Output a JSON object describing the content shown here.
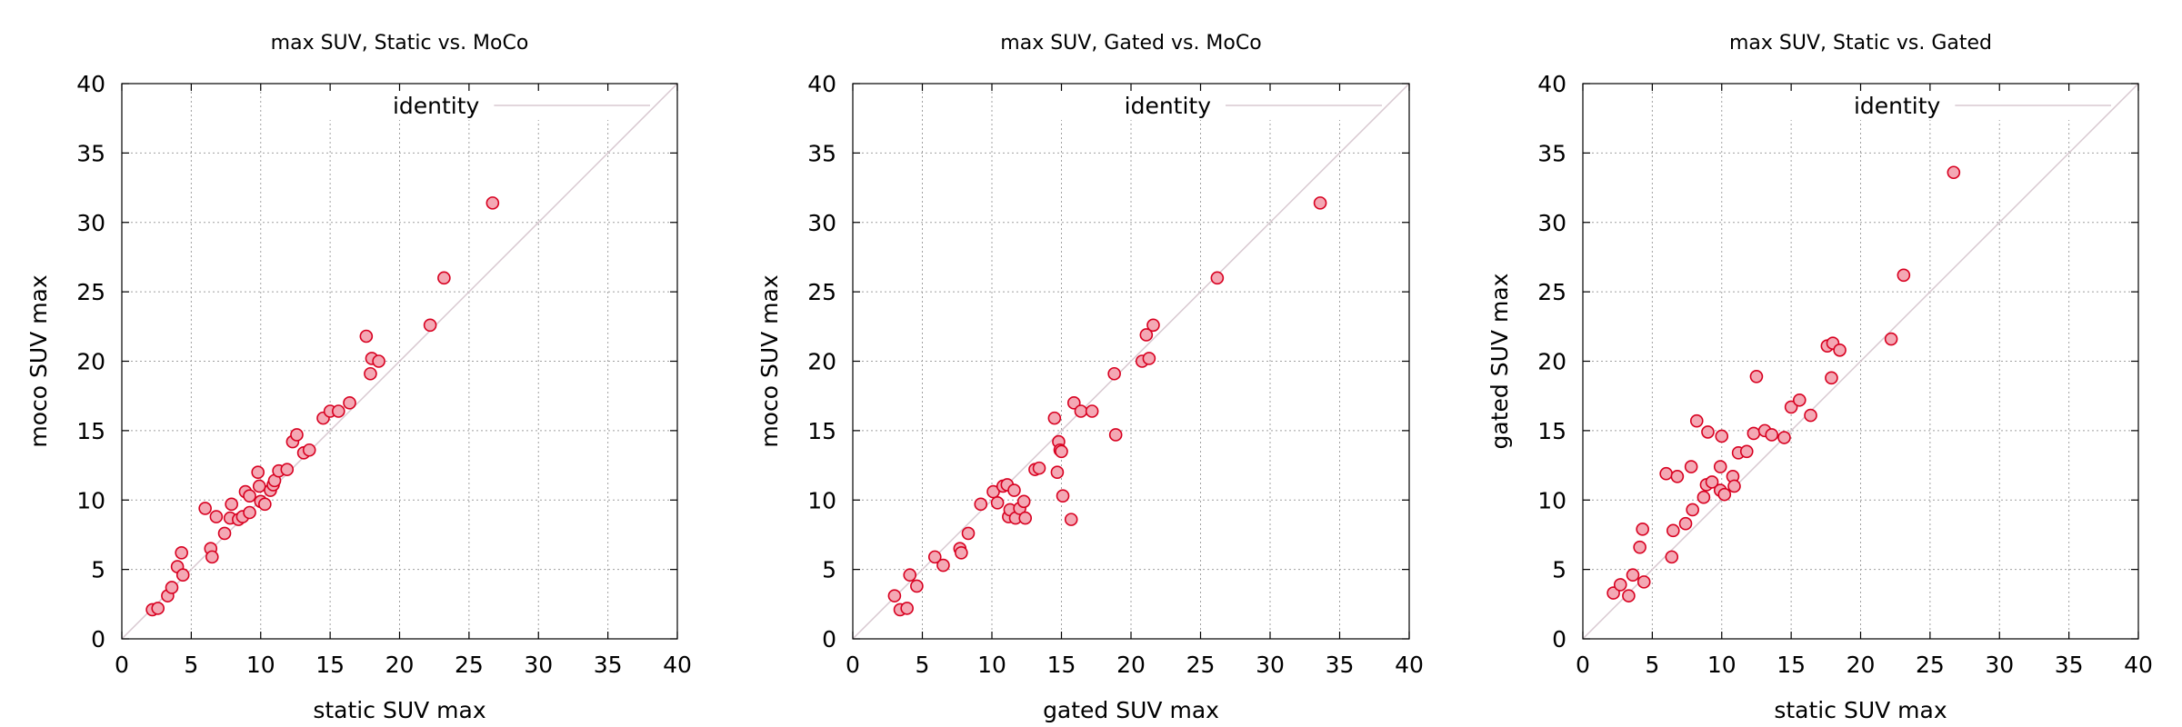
{
  "chart_data": [
    {
      "type": "scatter",
      "title": "max SUV, Static vs. MoCo",
      "xlabel": "static SUV max",
      "ylabel": "moco SUV max",
      "xlim": [
        0,
        40
      ],
      "ylim": [
        0,
        40
      ],
      "xticks": [
        "0",
        "5",
        "10",
        "15",
        "20",
        "25",
        "30",
        "35",
        "40"
      ],
      "yticks": [
        "0",
        "5",
        "10",
        "15",
        "20",
        "25",
        "30",
        "35",
        "40"
      ],
      "grid": true,
      "legend": {
        "position": "top-right",
        "entries": [
          {
            "label": "identity",
            "color": "#d8c8d0",
            "kind": "line"
          }
        ]
      },
      "series": [
        {
          "kind": "points",
          "points": [
            [
              2.2,
              2.1
            ],
            [
              2.6,
              2.2
            ],
            [
              3.3,
              3.1
            ],
            [
              3.6,
              3.7
            ],
            [
              4.0,
              5.2
            ],
            [
              4.3,
              6.2
            ],
            [
              4.4,
              4.6
            ],
            [
              6.0,
              9.4
            ],
            [
              6.4,
              6.5
            ],
            [
              6.5,
              5.9
            ],
            [
              6.8,
              8.8
            ],
            [
              7.4,
              7.6
            ],
            [
              7.8,
              8.7
            ],
            [
              7.9,
              9.7
            ],
            [
              8.4,
              8.6
            ],
            [
              8.7,
              8.8
            ],
            [
              8.9,
              10.6
            ],
            [
              9.2,
              10.3
            ],
            [
              9.2,
              9.1
            ],
            [
              9.8,
              12.0
            ],
            [
              9.9,
              11.0
            ],
            [
              10.0,
              9.9
            ],
            [
              10.3,
              9.7
            ],
            [
              10.7,
              10.7
            ],
            [
              10.9,
              11.1
            ],
            [
              11.0,
              11.4
            ],
            [
              11.3,
              12.1
            ],
            [
              11.9,
              12.2
            ],
            [
              12.3,
              14.2
            ],
            [
              12.6,
              14.7
            ],
            [
              13.1,
              13.4
            ],
            [
              13.5,
              13.6
            ],
            [
              14.5,
              15.9
            ],
            [
              15.0,
              16.4
            ],
            [
              15.6,
              16.4
            ],
            [
              16.4,
              17.0
            ],
            [
              17.6,
              21.8
            ],
            [
              17.9,
              19.1
            ],
            [
              18.0,
              20.2
            ],
            [
              18.5,
              20.0
            ],
            [
              22.2,
              22.6
            ],
            [
              23.2,
              26.0
            ],
            [
              26.7,
              31.4
            ]
          ]
        }
      ]
    },
    {
      "type": "scatter",
      "title": "max SUV, Gated vs. MoCo",
      "xlabel": "gated SUV max",
      "ylabel": "moco SUV max",
      "xlim": [
        0,
        40
      ],
      "ylim": [
        0,
        40
      ],
      "xticks": [
        "0",
        "5",
        "10",
        "15",
        "20",
        "25",
        "30",
        "35",
        "40"
      ],
      "yticks": [
        "0",
        "5",
        "10",
        "15",
        "20",
        "25",
        "30",
        "35",
        "40"
      ],
      "grid": true,
      "legend": {
        "position": "top-right",
        "entries": [
          {
            "label": "identity",
            "color": "#d8c8d0",
            "kind": "line"
          }
        ]
      },
      "series": [
        {
          "kind": "points",
          "points": [
            [
              3.0,
              3.1
            ],
            [
              3.4,
              2.1
            ],
            [
              3.9,
              2.2
            ],
            [
              4.1,
              4.6
            ],
            [
              4.6,
              3.8
            ],
            [
              5.9,
              5.9
            ],
            [
              6.5,
              5.3
            ],
            [
              7.7,
              6.5
            ],
            [
              7.8,
              6.2
            ],
            [
              8.3,
              7.6
            ],
            [
              9.2,
              9.7
            ],
            [
              10.1,
              10.6
            ],
            [
              10.4,
              9.8
            ],
            [
              10.8,
              11.0
            ],
            [
              11.1,
              11.1
            ],
            [
              11.2,
              8.8
            ],
            [
              11.3,
              9.3
            ],
            [
              11.6,
              10.7
            ],
            [
              11.7,
              8.7
            ],
            [
              12.0,
              9.4
            ],
            [
              12.3,
              9.9
            ],
            [
              12.4,
              8.7
            ],
            [
              13.1,
              12.2
            ],
            [
              13.4,
              12.3
            ],
            [
              14.5,
              15.9
            ],
            [
              14.7,
              12.0
            ],
            [
              14.8,
              14.2
            ],
            [
              14.9,
              13.6
            ],
            [
              15.0,
              13.5
            ],
            [
              15.1,
              10.3
            ],
            [
              15.7,
              8.6
            ],
            [
              15.9,
              17.0
            ],
            [
              16.4,
              16.4
            ],
            [
              17.2,
              16.4
            ],
            [
              18.8,
              19.1
            ],
            [
              18.9,
              14.7
            ],
            [
              20.8,
              20.0
            ],
            [
              21.1,
              21.9
            ],
            [
              21.3,
              20.2
            ],
            [
              21.6,
              22.6
            ],
            [
              26.2,
              26.0
            ],
            [
              33.6,
              31.4
            ]
          ]
        }
      ]
    },
    {
      "type": "scatter",
      "title": "max SUV, Static vs. Gated",
      "xlabel": "static SUV max",
      "ylabel": "gated SUV max",
      "xlim": [
        0,
        40
      ],
      "ylim": [
        0,
        40
      ],
      "xticks": [
        "0",
        "5",
        "10",
        "15",
        "20",
        "25",
        "30",
        "35",
        "40"
      ],
      "yticks": [
        "0",
        "5",
        "10",
        "15",
        "20",
        "25",
        "30",
        "35",
        "40"
      ],
      "grid": true,
      "legend": {
        "position": "top-right",
        "entries": [
          {
            "label": "identity",
            "color": "#d8c8d0",
            "kind": "line"
          }
        ]
      },
      "series": [
        {
          "kind": "points",
          "points": [
            [
              2.2,
              3.3
            ],
            [
              2.7,
              3.9
            ],
            [
              3.3,
              3.1
            ],
            [
              3.6,
              4.6
            ],
            [
              4.1,
              6.6
            ],
            [
              4.3,
              7.9
            ],
            [
              4.4,
              4.1
            ],
            [
              6.0,
              11.9
            ],
            [
              6.4,
              5.9
            ],
            [
              6.5,
              7.8
            ],
            [
              6.8,
              11.7
            ],
            [
              7.4,
              8.3
            ],
            [
              7.8,
              12.4
            ],
            [
              7.9,
              9.3
            ],
            [
              8.2,
              15.7
            ],
            [
              8.7,
              10.2
            ],
            [
              8.9,
              11.1
            ],
            [
              9.0,
              14.9
            ],
            [
              9.3,
              11.3
            ],
            [
              9.9,
              12.4
            ],
            [
              9.9,
              10.7
            ],
            [
              10.0,
              14.6
            ],
            [
              10.2,
              10.4
            ],
            [
              10.8,
              11.7
            ],
            [
              10.9,
              11.0
            ],
            [
              11.2,
              13.4
            ],
            [
              11.8,
              13.5
            ],
            [
              12.3,
              14.8
            ],
            [
              12.5,
              18.9
            ],
            [
              13.1,
              15.0
            ],
            [
              13.6,
              14.7
            ],
            [
              14.5,
              14.5
            ],
            [
              15.0,
              16.7
            ],
            [
              15.6,
              17.2
            ],
            [
              16.4,
              16.1
            ],
            [
              17.6,
              21.1
            ],
            [
              17.9,
              18.8
            ],
            [
              18.0,
              21.3
            ],
            [
              18.5,
              20.8
            ],
            [
              22.2,
              21.6
            ],
            [
              23.1,
              26.2
            ],
            [
              26.7,
              33.6
            ]
          ]
        }
      ]
    }
  ]
}
